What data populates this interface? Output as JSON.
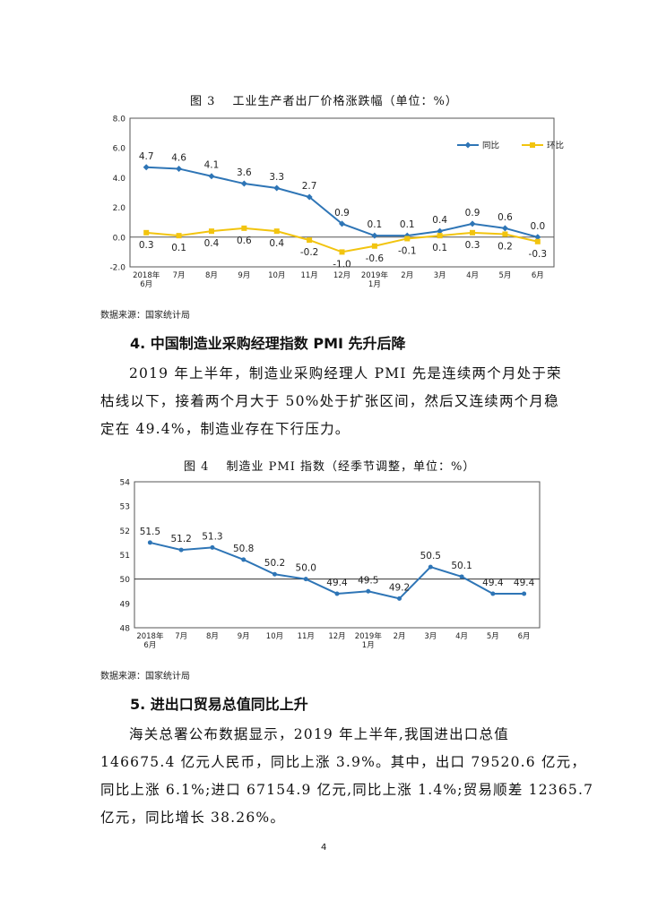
{
  "figure3": {
    "title": "图 3　 工业生产者出厂价格涨跌幅（单位：%）",
    "source": "数据来源：国家统计局",
    "chart_data": {
      "type": "line",
      "title": "工业生产者出厂价格涨跌幅（单位：%）",
      "categories": [
        "2018年\n6月",
        "7月",
        "8月",
        "9月",
        "10月",
        "11月",
        "12月",
        "2019年\n1月",
        "2月",
        "3月",
        "4月",
        "5月",
        "6月"
      ],
      "series": [
        {
          "name": "同比",
          "color": "#2e75b6",
          "values": [
            4.7,
            4.6,
            4.1,
            3.6,
            3.3,
            2.7,
            0.9,
            0.1,
            0.1,
            0.4,
            0.9,
            0.6,
            0.0
          ],
          "labels": [
            "4.7",
            "4.6",
            "4.1",
            "3.6",
            "3.3",
            "2.7",
            "0.9",
            "0.1",
            "0.1",
            "0.4",
            "0.9",
            "0.6",
            "0.0"
          ]
        },
        {
          "name": "环比",
          "color": "#f2c40f",
          "values": [
            0.3,
            0.1,
            0.4,
            0.6,
            0.4,
            -0.2,
            -1.0,
            -0.6,
            -0.1,
            0.1,
            0.3,
            0.2,
            -0.3
          ],
          "labels": [
            "0.3",
            "0.1",
            "0.4",
            "0.6",
            "0.4",
            "-0.2",
            "-1.0",
            "-0.6",
            "-0.1",
            "0.1",
            "0.3",
            "0.2",
            "-0.3"
          ]
        }
      ],
      "ylim": [
        -2.0,
        8.0
      ],
      "yticks": [
        "-2.0",
        "0.0",
        "2.0",
        "4.0",
        "6.0",
        "8.0"
      ],
      "legend": "top-right"
    }
  },
  "section4": {
    "heading": "4. 中国制造业采购经理指数 PMI 先升后降",
    "para_lines": [
      "2019 年上半年，制造业采购经理人 PMI 先是连续两个月处于荣",
      "枯线以下，接着两个月大于 50%处于扩张区间，然后又连续两个月稳",
      "定在 49.4%，制造业存在下行压力。"
    ]
  },
  "figure4": {
    "title": "图 4　 制造业 PMI 指数（经季节调整，单位：%）",
    "source": "数据来源：国家统计局",
    "chart_data": {
      "type": "line",
      "title": "制造业 PMI 指数（经季节调整，单位：%）",
      "categories": [
        "2018年\n6月",
        "7月",
        "8月",
        "9月",
        "10月",
        "11月",
        "12月",
        "2019年\n1月",
        "2月",
        "3月",
        "4月",
        "5月",
        "6月"
      ],
      "series": [
        {
          "name": "",
          "color": "#2e75b6",
          "values": [
            51.5,
            51.2,
            51.3,
            50.8,
            50.2,
            50.0,
            49.4,
            49.5,
            49.2,
            50.5,
            50.1,
            49.4,
            49.4
          ],
          "labels": [
            "51.5",
            "51.2",
            "51.3",
            "50.8",
            "50.2",
            "50.0",
            "49.4",
            "49.5",
            "49.2",
            "50.5",
            "50.1",
            "49.4",
            "49.4"
          ]
        }
      ],
      "ylim": [
        48,
        54
      ],
      "yticks": [
        "48",
        "49",
        "50",
        "51",
        "52",
        "53",
        "54"
      ],
      "reference_line": 50
    }
  },
  "section5": {
    "heading": "5. 进出口贸易总值同比上升",
    "para_lines": [
      "海关总署公布数据显示，2019 年上半年,我国进出口总值",
      "146675.4 亿元人民币，同比上涨 3.9%。其中，出口 79520.6 亿元，",
      "同比上涨 6.1%;进口 67154.9 亿元,同比上涨 1.4%;贸易顺差 12365.7",
      "亿元，同比增长 38.26%。"
    ]
  },
  "page_number": "4"
}
